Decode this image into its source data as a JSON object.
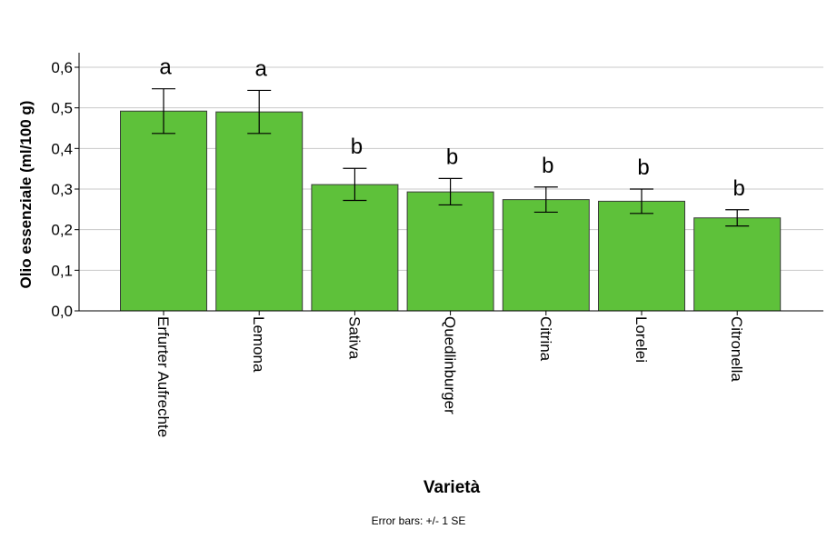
{
  "chart_data": {
    "type": "bar",
    "title": "",
    "xlabel": "Varietà",
    "ylabel": "Olio essenziale (ml/100 g)",
    "ylim": [
      0,
      0.6
    ],
    "yticks": [
      "0,0",
      "0,1",
      "0,2",
      "0,3",
      "0,4",
      "0,5",
      "0,6"
    ],
    "grid": true,
    "categories": [
      "Erfurter Aufrechte",
      "Lemona",
      "Sativa",
      "Quedlinburger",
      "Citrina",
      "Lorelei",
      "Citronella"
    ],
    "values": [
      0.492,
      0.49,
      0.311,
      0.293,
      0.274,
      0.27,
      0.229
    ],
    "error_low": [
      0.437,
      0.437,
      0.272,
      0.261,
      0.243,
      0.24,
      0.209
    ],
    "error_high": [
      0.547,
      0.543,
      0.351,
      0.326,
      0.305,
      0.3,
      0.249
    ],
    "significance_letters": [
      "a",
      "a",
      "b",
      "b",
      "b",
      "b",
      "b"
    ],
    "bar_color": "#5ec13a",
    "footnote": "Error bars: +/- 1 SE"
  }
}
